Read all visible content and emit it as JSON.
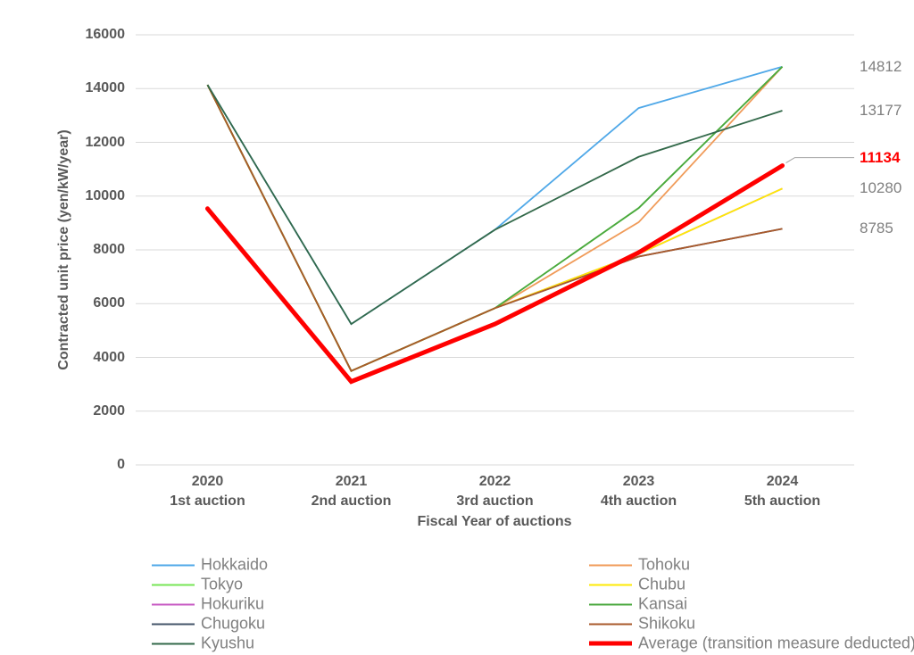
{
  "chart_data": {
    "type": "line",
    "title": "",
    "xlabel": "Fiscal Year of auctions",
    "ylabel": "Contracted unit price (yen/kW/year)",
    "unit": "yen/kW/year",
    "ylim": [
      0,
      16000
    ],
    "yticks": [
      0,
      2000,
      4000,
      6000,
      8000,
      10000,
      12000,
      14000,
      16000
    ],
    "grid": true,
    "legend_position": "bottom, two columns",
    "categories": [
      {
        "year": "2020",
        "auction": "1st auction"
      },
      {
        "year": "2021",
        "auction": "2nd auction"
      },
      {
        "year": "2022",
        "auction": "3rd auction"
      },
      {
        "year": "2023",
        "auction": "4th auction"
      },
      {
        "year": "2024",
        "auction": "5th auction"
      }
    ],
    "series": [
      {
        "name": "Hokuriku",
        "color": "#C75BC3",
        "values": [
          14137,
          3495,
          5832,
          7850,
          10280
        ]
      },
      {
        "name": "Chugoku",
        "color": "#44546A",
        "values": [
          14137,
          3495,
          5832,
          7750,
          8785
        ]
      },
      {
        "name": "Hokkaido",
        "color": "#4FA8E8",
        "values": [
          14137,
          5242,
          8749,
          13274,
          14812
        ],
        "end_label": "14812"
      },
      {
        "name": "Tohoku",
        "color": "#F09B59",
        "values": [
          14137,
          3495,
          5832,
          9027,
          14812
        ]
      },
      {
        "name": "Tokyo",
        "color": "#77E556",
        "values": [
          14137,
          3495,
          5832,
          9555,
          14812
        ]
      },
      {
        "name": "Chubu",
        "color": "#FEE904",
        "values": [
          14137,
          3495,
          5832,
          7850,
          10280
        ],
        "end_label": "10280"
      },
      {
        "name": "Kansai",
        "color": "#4BA83F",
        "values": [
          14137,
          3495,
          5832,
          9555,
          14812
        ]
      },
      {
        "name": "Shikoku",
        "color": "#A9592B",
        "values": [
          14137,
          3495,
          5832,
          7750,
          8785
        ],
        "end_label": "8785"
      },
      {
        "name": "Kyushu",
        "color": "#33694A",
        "values": [
          14137,
          5242,
          8749,
          11460,
          13177
        ],
        "end_label": "13177"
      },
      {
        "name": "Average (transition measure deducted)",
        "color": "#FF0000",
        "values": [
          9534,
          3100,
          5242,
          7900,
          11134
        ],
        "emphasis": true,
        "end_label": "11134",
        "end_label_color": "#FF0000"
      }
    ],
    "legend": {
      "columns": [
        [
          "Hokkaido",
          "Tokyo",
          "Hokuriku",
          "Chugoku",
          "Kyushu"
        ],
        [
          "Tohoku",
          "Chubu",
          "Kansai",
          "Shikoku",
          "Average (transition measure deducted)"
        ]
      ]
    },
    "colors": {
      "axis_text": "#595959",
      "grid": "#D9D9D9",
      "end_label": "#808080",
      "legend_text": "#808080",
      "leader": "#A6A6A6",
      "background": "#FFFFFF"
    }
  }
}
